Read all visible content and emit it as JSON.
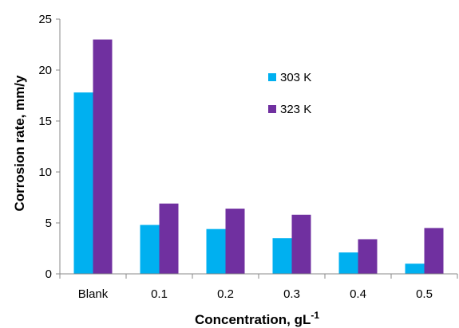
{
  "chart_data": {
    "type": "bar",
    "categories": [
      "Blank",
      "0.1",
      "0.2",
      "0.3",
      "0.4",
      "0.5"
    ],
    "series": [
      {
        "name": "303 K",
        "color": "#00B0F0",
        "values": [
          17.8,
          4.8,
          4.4,
          3.5,
          2.1,
          1.0
        ]
      },
      {
        "name": "323 K",
        "color": "#7030A0",
        "values": [
          23.0,
          6.9,
          6.4,
          5.8,
          3.4,
          4.5
        ]
      }
    ],
    "ylabel": "Corrosion rate, mm/y",
    "xlabel_base": "Concentration, gL",
    "xlabel_sup": "-1",
    "ylim": [
      0,
      25
    ],
    "yticks": [
      "0",
      "5",
      "10",
      "15",
      "20",
      "25"
    ],
    "grid": false,
    "legend_position": "right"
  }
}
